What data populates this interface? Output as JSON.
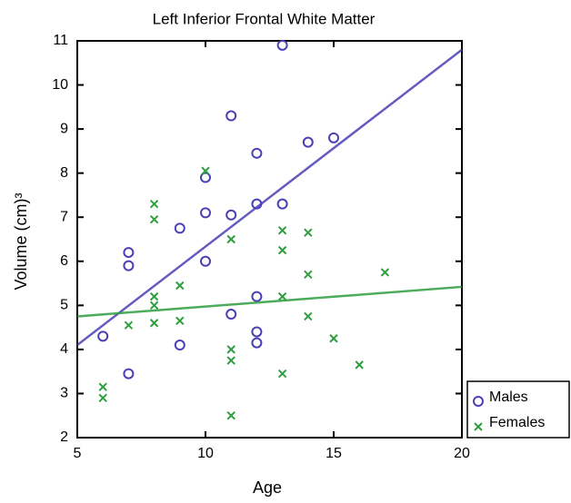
{
  "chart_data": {
    "type": "scatter",
    "title": "Left Inferior Frontal White Matter",
    "x_label": "Age",
    "y_label": "Volume (cm)³",
    "xlim": [
      5,
      20
    ],
    "xticks": [
      5,
      10,
      15,
      20
    ],
    "ylim": [
      2,
      11
    ],
    "yticks": [
      2,
      3,
      4,
      5,
      6,
      7,
      8,
      9,
      10,
      11
    ],
    "legend": "lower right",
    "series": [
      {
        "name": "Males",
        "color": "#4b3fb5",
        "marker": "circle",
        "x": [
          6,
          7,
          7,
          7,
          9,
          9,
          10,
          10,
          10,
          11,
          11,
          11,
          12,
          12,
          12,
          12,
          12,
          13,
          13,
          14,
          15
        ],
        "values": [
          4.3,
          6.2,
          5.9,
          3.45,
          6.75,
          4.1,
          7.9,
          7.1,
          6.0,
          9.3,
          7.05,
          4.8,
          8.45,
          7.3,
          5.2,
          4.4,
          4.15,
          10.9,
          7.3,
          8.7,
          8.8
        ],
        "trendline": {
          "x": [
            5,
            20
          ],
          "values": [
            4.1,
            10.8
          ]
        }
      },
      {
        "name": "Females",
        "color": "#2e9e3e",
        "marker": "x",
        "x": [
          6,
          6,
          7,
          8,
          8,
          8,
          8,
          8,
          9,
          9,
          10,
          11,
          11,
          11,
          11,
          13,
          13,
          13,
          13,
          14,
          14,
          14,
          15,
          16,
          17
        ],
        "values": [
          3.15,
          2.9,
          4.55,
          7.3,
          6.95,
          5.2,
          5.0,
          4.6,
          5.45,
          4.65,
          8.05,
          6.5,
          4.0,
          3.75,
          2.5,
          6.7,
          6.25,
          5.2,
          3.45,
          6.65,
          5.7,
          4.75,
          4.25,
          3.65,
          5.75
        ],
        "trendline": {
          "x": [
            5,
            20
          ],
          "values": [
            4.75,
            5.42
          ]
        }
      }
    ]
  }
}
